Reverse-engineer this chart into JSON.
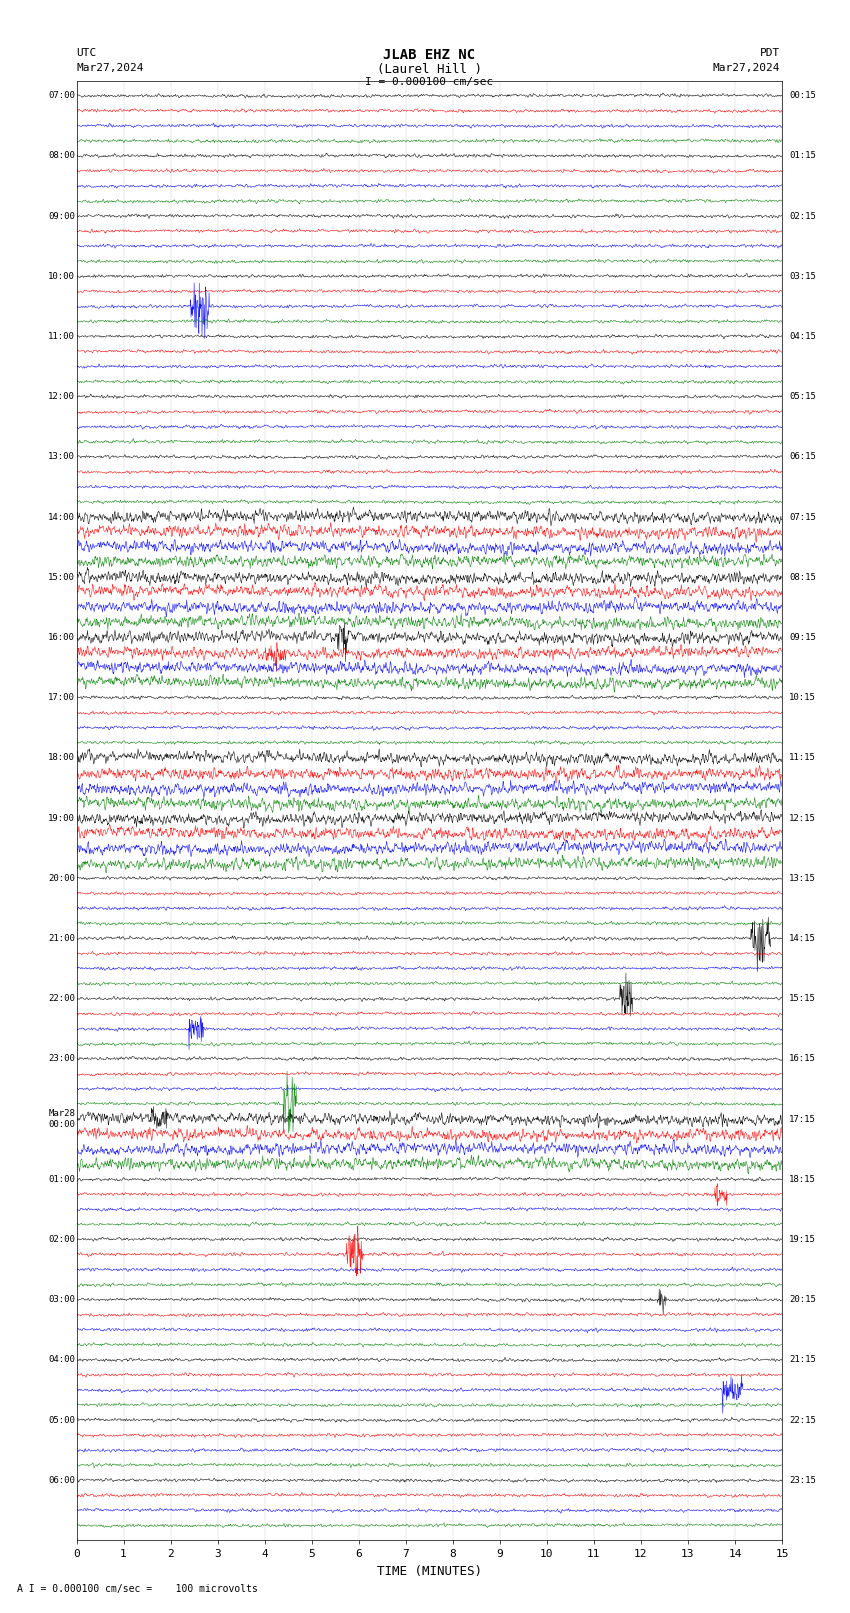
{
  "title_line1": "JLAB EHZ NC",
  "title_line2": "(Laurel Hill )",
  "scale_label": "I = 0.000100 cm/sec",
  "footer_label": "A I = 0.000100 cm/sec =    100 microvolts",
  "utc_label": "UTC",
  "pdt_label": "PDT",
  "date_left": "Mar27,2024",
  "date_right": "Mar27,2024",
  "xlabel": "TIME (MINUTES)",
  "xlim": [
    0,
    15
  ],
  "xticks": [
    0,
    1,
    2,
    3,
    4,
    5,
    6,
    7,
    8,
    9,
    10,
    11,
    12,
    13,
    14,
    15
  ],
  "trace_colors": [
    "black",
    "red",
    "blue",
    "green"
  ],
  "background_color": "white",
  "utc_rows": [
    "07:00",
    "08:00",
    "09:00",
    "10:00",
    "11:00",
    "12:00",
    "13:00",
    "14:00",
    "15:00",
    "16:00",
    "17:00",
    "18:00",
    "19:00",
    "20:00",
    "21:00",
    "22:00",
    "23:00",
    "Mar28\n00:00",
    "01:00",
    "02:00",
    "03:00",
    "04:00",
    "05:00",
    "06:00"
  ],
  "pdt_rows": [
    "00:15",
    "01:15",
    "02:15",
    "03:15",
    "04:15",
    "05:15",
    "06:15",
    "07:15",
    "08:15",
    "09:15",
    "10:15",
    "11:15",
    "12:15",
    "13:15",
    "14:15",
    "15:15",
    "16:15",
    "17:15",
    "18:15",
    "19:15",
    "20:15",
    "21:15",
    "22:15",
    "23:15"
  ],
  "n_hours": 24,
  "traces_per_hour": 4,
  "noise_scale": 0.08,
  "special_noise_rows": [
    7,
    8,
    9,
    11,
    12,
    17
  ],
  "special_noise_scale": 0.3,
  "seed": 42
}
